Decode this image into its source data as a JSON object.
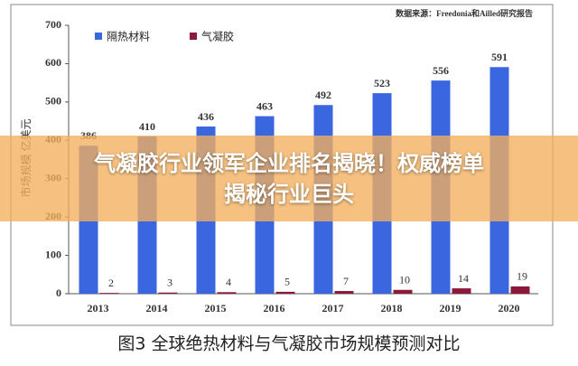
{
  "chart_data": {
    "type": "bar",
    "source": "数据来源：Freedonia和Ailled研究报告",
    "y_label": "市场规模 亿美元",
    "categories": [
      "2013",
      "2014",
      "2015",
      "2016",
      "2017",
      "2018",
      "2019",
      "2020"
    ],
    "series": [
      {
        "name": "隔热材料",
        "color": "#3a66e0",
        "values": [
          386,
          410,
          436,
          463,
          492,
          523,
          556,
          591
        ]
      },
      {
        "name": "气凝胶",
        "color": "#8b1a3a",
        "values": [
          2,
          3,
          4,
          5,
          7,
          10,
          14,
          19
        ]
      }
    ],
    "ylim": [
      0,
      700
    ],
    "yticks": [
      0,
      100,
      200,
      300,
      400,
      500,
      600,
      700
    ],
    "grid": false
  },
  "caption": "图3 全球绝热材料与气凝胶市场规模预测对比",
  "banner": {
    "lines": [
      "气凝胶行业领军企业排名揭晓！权威榜单",
      "揭秘行业巨头"
    ]
  }
}
